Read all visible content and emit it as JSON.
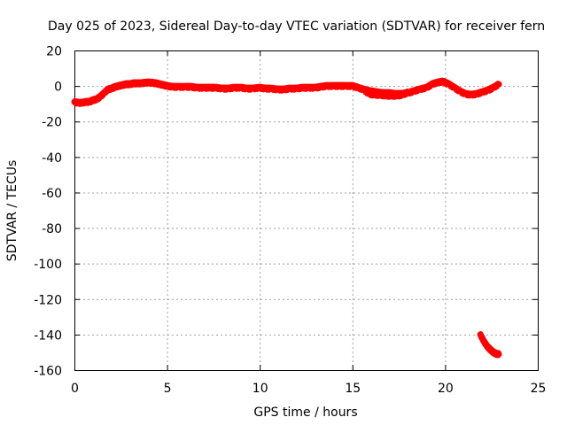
{
  "chart_data": {
    "type": "scatter",
    "title": "Day 025 of 2023, Sidereal Day-to-day VTEC variation (SDTVAR) for receiver fern",
    "xlabel": "GPS time / hours",
    "ylabel": "SDTVAR / TECUs",
    "xlim": [
      0,
      25
    ],
    "ylim": [
      -160,
      20
    ],
    "xticks": [
      "0",
      "5",
      "10",
      "15",
      "20",
      "25"
    ],
    "yticks": [
      "20",
      "0",
      "-20",
      "-40",
      "-60",
      "-80",
      "-100",
      "-120",
      "-140",
      "-160"
    ],
    "grid": true,
    "series": [
      {
        "color": "#ff0000",
        "x": [
          0.0,
          0.2,
          0.4,
          0.6,
          0.8,
          1.0,
          1.2,
          1.4,
          1.6,
          1.8,
          2.0,
          2.2,
          2.4,
          2.6,
          2.8,
          3.0,
          3.2,
          3.4,
          3.6,
          3.8,
          4.0,
          4.2,
          4.4,
          4.6,
          4.8,
          5.0,
          5.3,
          5.6,
          6.0,
          6.3,
          6.6,
          7.0,
          7.3,
          7.6,
          8.0,
          8.3,
          8.6,
          9.0,
          9.3,
          9.6,
          10.0,
          10.3,
          10.6,
          11.0,
          11.3,
          11.6,
          12.0,
          12.3,
          12.6,
          13.0,
          13.3,
          13.6,
          14.0,
          14.3,
          14.6,
          15.0,
          15.3,
          15.6,
          16.0,
          16.3,
          16.6,
          17.0,
          17.3,
          17.6,
          18.0,
          18.3,
          18.6,
          19.0,
          19.3,
          19.6,
          19.9,
          20.2,
          20.5,
          20.8,
          21.1,
          21.4,
          21.7,
          22.0,
          22.3,
          22.6,
          22.9
        ],
        "y": [
          -9,
          -9.5,
          -9.5,
          -9,
          -9,
          -8,
          -7.5,
          -6,
          -4,
          -2,
          -1.5,
          -0.5,
          0,
          0.5,
          1,
          1,
          1.5,
          1.5,
          1.5,
          1.8,
          2,
          1.8,
          1.5,
          1,
          0.5,
          0,
          -0.5,
          -0.5,
          -0.5,
          -0.5,
          -1,
          -1,
          -1,
          -1,
          -1.5,
          -1.5,
          -1,
          -1,
          -1.5,
          -1.5,
          -1,
          -1.5,
          -1.5,
          -2,
          -2,
          -1.5,
          -1.5,
          -1,
          -1,
          -1,
          -0.5,
          0,
          0,
          0,
          0,
          0,
          -1,
          -2,
          -3,
          -3.5,
          -4,
          -4,
          -4.5,
          -4.5,
          -4,
          -3,
          -2,
          -1,
          1,
          2,
          2.5,
          1,
          -1,
          -3,
          -4.5,
          -5,
          -4.5,
          -3.5,
          -2.5,
          -1,
          1
        ]
      },
      {
        "color": "#ff0000",
        "x": [
          15.6,
          15.9,
          16.2,
          16.5,
          16.8,
          17.1,
          17.4,
          17.7,
          18.0
        ],
        "y": [
          -2,
          -4.5,
          -5,
          -5,
          -5.5,
          -5.5,
          -5.5,
          -5,
          -3.5
        ]
      },
      {
        "color": "#ff0000",
        "x": [
          21.9,
          22.0,
          22.1,
          22.2,
          22.3,
          22.4,
          22.5,
          22.6,
          22.7,
          22.8,
          22.9
        ],
        "y": [
          -140,
          -142,
          -144,
          -145.5,
          -147,
          -148,
          -149,
          -150,
          -150.5,
          -151,
          -151
        ]
      }
    ]
  }
}
